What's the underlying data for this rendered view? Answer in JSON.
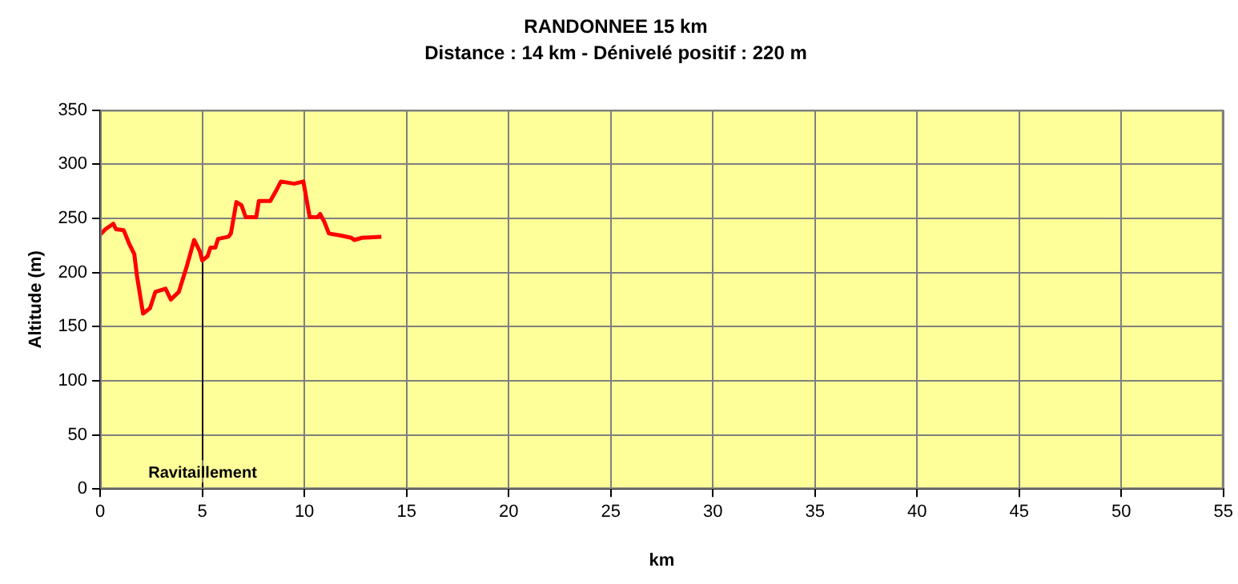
{
  "chart_data": {
    "type": "line",
    "title": "RANDONNEE 15 km",
    "subtitle": "Distance : 14 km - Dénivelé positif : 220 m",
    "xlabel": "km",
    "ylabel": "Altitude (m)",
    "series": [
      {
        "color": "#ff0000",
        "x": [
          0,
          0.26,
          0.64,
          0.77,
          1.15,
          1.41,
          1.67,
          1.8,
          2.1,
          2.44,
          2.7,
          3.2,
          3.46,
          3.85,
          4.23,
          4.6,
          4.87,
          5.0,
          5.26,
          5.4,
          5.64,
          5.77,
          6.28,
          6.4,
          6.67,
          6.92,
          7.13,
          7.64,
          7.77,
          8.33,
          8.6,
          8.85,
          9.5,
          9.95,
          10.26,
          10.64,
          10.77,
          10.97,
          11.2,
          11.8,
          12.3,
          12.44,
          12.82,
          13.77
        ],
        "values": [
          235,
          240,
          245,
          240,
          239,
          227,
          217,
          197,
          162,
          167,
          182,
          185,
          175,
          182,
          205,
          230,
          220,
          211,
          215,
          223,
          223,
          231,
          233,
          236,
          265,
          262,
          251,
          251,
          266,
          266,
          275,
          284,
          282,
          284,
          251,
          251,
          254,
          247,
          236,
          234,
          232,
          230,
          232,
          233
        ]
      }
    ],
    "xlim": [
      0,
      55
    ],
    "xticks": [
      0,
      5,
      10,
      15,
      20,
      25,
      30,
      35,
      40,
      45,
      50,
      55
    ],
    "ylim": [
      0,
      350
    ],
    "yticks": [
      0,
      50,
      100,
      150,
      200,
      250,
      300,
      350
    ],
    "grid": true,
    "marker": "none",
    "line_style": "solid",
    "ref_lines": [
      {
        "axis": "x",
        "value": 5,
        "label": "Ravitaillement",
        "color": "#000000"
      }
    ]
  }
}
